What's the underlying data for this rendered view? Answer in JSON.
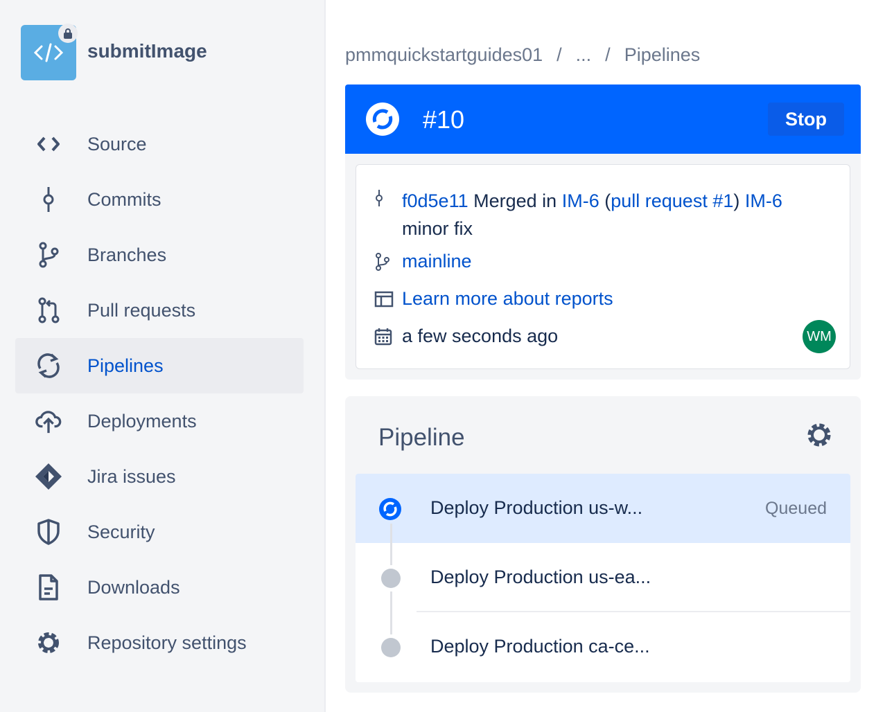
{
  "sidebar": {
    "repo_name": "submitImage",
    "items": [
      {
        "label": "Source",
        "icon": "code-icon"
      },
      {
        "label": "Commits",
        "icon": "commit-icon"
      },
      {
        "label": "Branches",
        "icon": "branch-icon"
      },
      {
        "label": "Pull requests",
        "icon": "pull-request-icon"
      },
      {
        "label": "Pipelines",
        "icon": "pipelines-icon",
        "active": true
      },
      {
        "label": "Deployments",
        "icon": "cloud-upload-icon"
      },
      {
        "label": "Jira issues",
        "icon": "jira-icon"
      },
      {
        "label": "Security",
        "icon": "shield-icon"
      },
      {
        "label": "Downloads",
        "icon": "file-icon"
      },
      {
        "label": "Repository settings",
        "icon": "gear-icon"
      }
    ]
  },
  "breadcrumb": [
    "pmmquickstartguides01",
    "/",
    "...",
    "/",
    "Pipelines"
  ],
  "header": {
    "run_number": "#10",
    "stop_label": "Stop",
    "color": "#0065ff"
  },
  "info": {
    "commit_hash": "f0d5e11",
    "merged_in": "Merged in",
    "branch_link": "IM-6",
    "open_paren": "(",
    "pr_link": "pull request #1",
    "close_paren": ")",
    "issue_link": "IM-6",
    "message": "minor fix",
    "branch": "mainline",
    "reports_link": "Learn more about reports",
    "time": "a few seconds ago",
    "avatar_initials": "WM"
  },
  "pipeline": {
    "title": "Pipeline",
    "steps": [
      {
        "name": "Deploy Production us-w...",
        "status": "Queued",
        "active": true
      },
      {
        "name": "Deploy Production us-ea...",
        "status": ""
      },
      {
        "name": "Deploy Production ca-ce...",
        "status": ""
      }
    ]
  }
}
